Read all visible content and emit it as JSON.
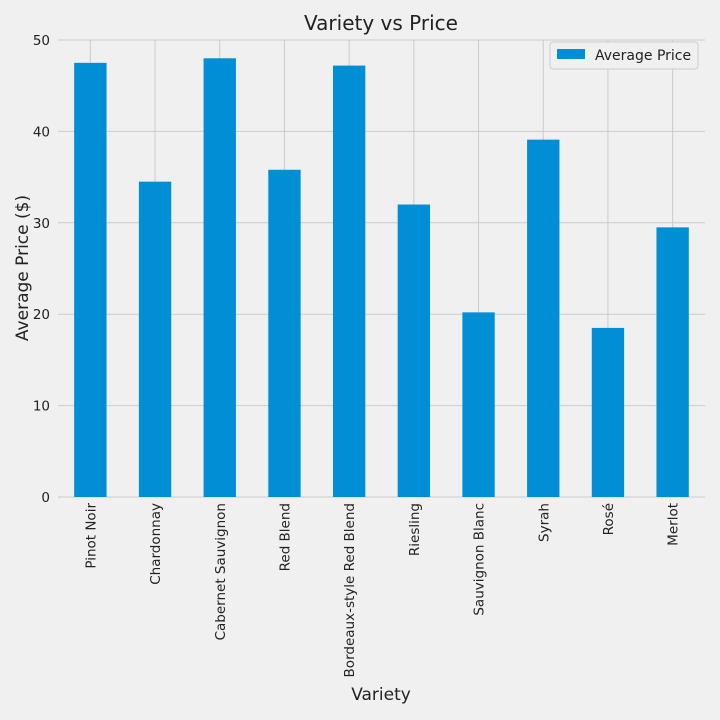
{
  "chart_data": {
    "type": "bar",
    "title": "Variety vs Price",
    "xlabel": "Variety",
    "ylabel": "Average Price ($)",
    "categories": [
      "Pinot Noir",
      "Chardonnay",
      "Cabernet Sauvignon",
      "Red Blend",
      "Bordeaux-style Red Blend",
      "Riesling",
      "Sauvignon Blanc",
      "Syrah",
      "Rosé",
      "Merlot"
    ],
    "series": [
      {
        "name": "Average Price",
        "values": [
          47.5,
          34.5,
          48.0,
          35.8,
          47.2,
          32.0,
          20.2,
          39.1,
          18.5,
          29.5
        ],
        "color": "#008fd5"
      }
    ],
    "ylim": [
      0,
      50
    ],
    "yticks": [
      0,
      10,
      20,
      30,
      40,
      50
    ],
    "grid": true,
    "legend_position": "top-right",
    "background": "#f0f0f0"
  }
}
